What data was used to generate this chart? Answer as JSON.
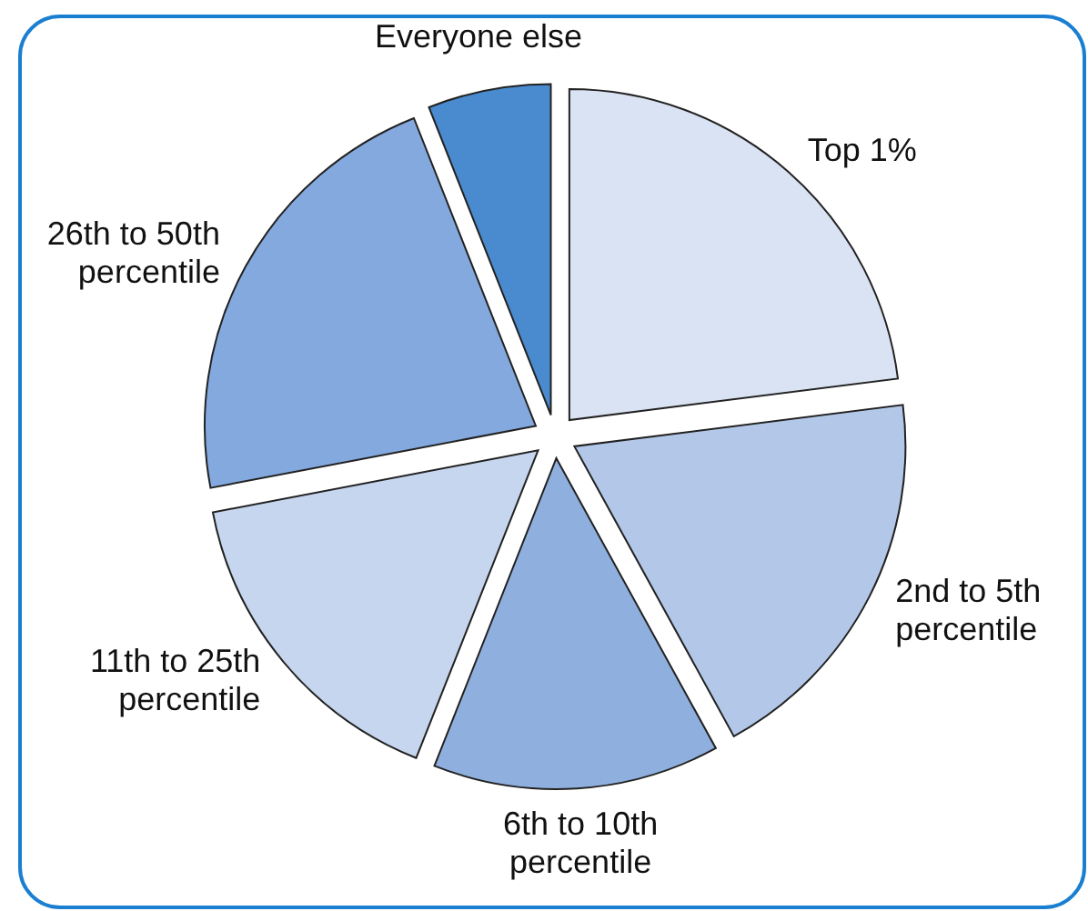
{
  "chart_data": {
    "type": "pie",
    "categories": [
      "Top 1%",
      "2nd to 5th percentile",
      "6th to 10th percentile",
      "11th to 25th percentile",
      "26th to 50th percentile",
      "Everyone else"
    ],
    "values": [
      23,
      19,
      14,
      16,
      22,
      6
    ],
    "colors": [
      "#dae3f3",
      "#b3c8e8",
      "#8fb0de",
      "#c6d6ee",
      "#84a9de",
      "#4a8acf"
    ]
  }
}
